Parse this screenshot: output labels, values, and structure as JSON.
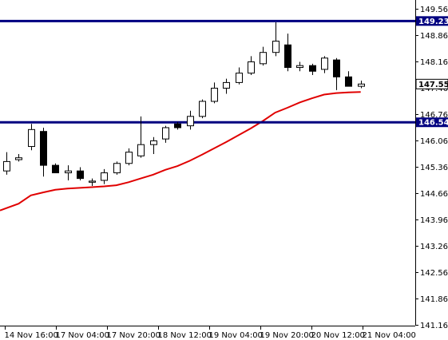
{
  "chart_data": {
    "type": "candlestick",
    "y_ticks": [
      "149.560",
      "148.860",
      "148.160",
      "147.460",
      "146.760",
      "146.060",
      "145.360",
      "144.660",
      "143.960",
      "143.260",
      "142.560",
      "141.860",
      "141.160"
    ],
    "y_tick_values": [
      149.56,
      148.86,
      148.16,
      147.46,
      146.76,
      146.06,
      145.36,
      144.66,
      143.96,
      143.26,
      142.56,
      141.86,
      141.16
    ],
    "ylim": [
      141.16,
      149.56
    ],
    "x_tick_labels": [
      "14 Nov 16:00",
      "17 Nov 04:00",
      "17 Nov 20:00",
      "18 Nov 12:00",
      "19 Nov 04:00",
      "19 Nov 20:00",
      "20 Nov 12:00",
      "21 Nov 04:00"
    ],
    "horizontal_lines": [
      {
        "value": 149.235,
        "label": "149.235",
        "color": "#000080"
      },
      {
        "value": 146.543,
        "label": "146.543",
        "color": "#000080"
      }
    ],
    "current_price": {
      "value": 147.559,
      "label": "147.559"
    },
    "candles": [
      {
        "o": 145.25,
        "h": 145.75,
        "l": 145.15,
        "c": 145.5
      },
      {
        "o": 145.55,
        "h": 145.7,
        "l": 145.5,
        "c": 145.6
      },
      {
        "o": 145.9,
        "h": 146.5,
        "l": 145.8,
        "c": 146.35
      },
      {
        "o": 146.3,
        "h": 146.4,
        "l": 145.1,
        "c": 145.4
      },
      {
        "o": 145.4,
        "h": 145.45,
        "l": 145.2,
        "c": 145.2
      },
      {
        "o": 145.2,
        "h": 145.4,
        "l": 145.0,
        "c": 145.25
      },
      {
        "o": 145.25,
        "h": 145.35,
        "l": 145.0,
        "c": 145.05
      },
      {
        "o": 144.95,
        "h": 145.05,
        "l": 144.85,
        "c": 144.98
      },
      {
        "o": 145.0,
        "h": 145.3,
        "l": 144.9,
        "c": 145.2
      },
      {
        "o": 145.2,
        "h": 145.5,
        "l": 145.15,
        "c": 145.45
      },
      {
        "o": 145.45,
        "h": 145.85,
        "l": 145.4,
        "c": 145.75
      },
      {
        "o": 145.65,
        "h": 146.7,
        "l": 145.6,
        "c": 145.95
      },
      {
        "o": 145.95,
        "h": 146.15,
        "l": 145.7,
        "c": 146.05
      },
      {
        "o": 146.1,
        "h": 146.45,
        "l": 146.0,
        "c": 146.4
      },
      {
        "o": 146.5,
        "h": 146.55,
        "l": 146.35,
        "c": 146.4
      },
      {
        "o": 146.45,
        "h": 146.85,
        "l": 146.35,
        "c": 146.7
      },
      {
        "o": 146.7,
        "h": 147.15,
        "l": 146.65,
        "c": 147.1
      },
      {
        "o": 147.1,
        "h": 147.6,
        "l": 147.05,
        "c": 147.45
      },
      {
        "o": 147.45,
        "h": 147.7,
        "l": 147.3,
        "c": 147.6
      },
      {
        "o": 147.6,
        "h": 148.0,
        "l": 147.55,
        "c": 147.85
      },
      {
        "o": 147.85,
        "h": 148.3,
        "l": 147.8,
        "c": 148.15
      },
      {
        "o": 148.1,
        "h": 148.55,
        "l": 148.05,
        "c": 148.4
      },
      {
        "o": 148.4,
        "h": 149.2,
        "l": 148.3,
        "c": 148.7
      },
      {
        "o": 148.6,
        "h": 148.9,
        "l": 147.9,
        "c": 148.0
      },
      {
        "o": 148.0,
        "h": 148.15,
        "l": 147.9,
        "c": 148.05
      },
      {
        "o": 148.05,
        "h": 148.1,
        "l": 147.8,
        "c": 147.9
      },
      {
        "o": 147.95,
        "h": 148.3,
        "l": 147.85,
        "c": 148.25
      },
      {
        "o": 148.2,
        "h": 148.25,
        "l": 147.4,
        "c": 147.75
      },
      {
        "o": 147.75,
        "h": 147.9,
        "l": 147.5,
        "c": 147.5
      },
      {
        "o": 147.5,
        "h": 147.65,
        "l": 147.45,
        "c": 147.56
      }
    ],
    "moving_average": [
      144.2,
      144.38,
      144.6,
      144.68,
      144.75,
      144.78,
      144.8,
      144.82,
      144.84,
      144.87,
      144.95,
      145.05,
      145.15,
      145.28,
      145.38,
      145.52,
      145.68,
      145.85,
      146.02,
      146.2,
      146.38,
      146.58,
      146.8,
      146.93,
      147.07,
      147.18,
      147.28,
      147.32,
      147.34,
      147.35
    ],
    "colors": {
      "ma": "#e00000",
      "hline": "#000080",
      "bull_fill": "#ffffff",
      "bear_fill": "#000000",
      "candle_outline": "#000000"
    }
  }
}
